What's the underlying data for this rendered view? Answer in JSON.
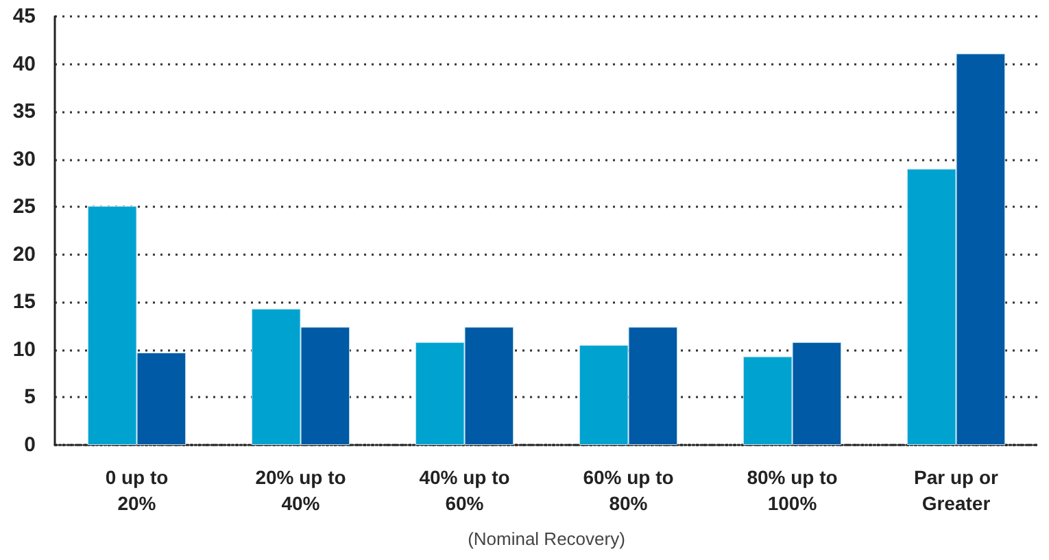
{
  "chart_data": {
    "type": "bar",
    "xlabel": "(Nominal Recovery)",
    "categories": [
      "0 up to\n20%",
      "20% up to\n40%",
      "40% up to\n60%",
      "60% up to\n80%",
      "80% up to\n100%",
      "Par up or\nGreater"
    ],
    "series": [
      {
        "color": "#00a3d0",
        "values": [
          25.1,
          14.3,
          10.8,
          10.5,
          9.3,
          29.0
        ]
      },
      {
        "color": "#005aa5",
        "values": [
          9.7,
          12.4,
          12.4,
          12.4,
          10.8,
          41.1
        ]
      }
    ],
    "ylim": [
      0,
      45
    ],
    "yticks": [
      0,
      5,
      10,
      15,
      20,
      25,
      30,
      35,
      40,
      45
    ],
    "grid": "y",
    "legend": false
  }
}
